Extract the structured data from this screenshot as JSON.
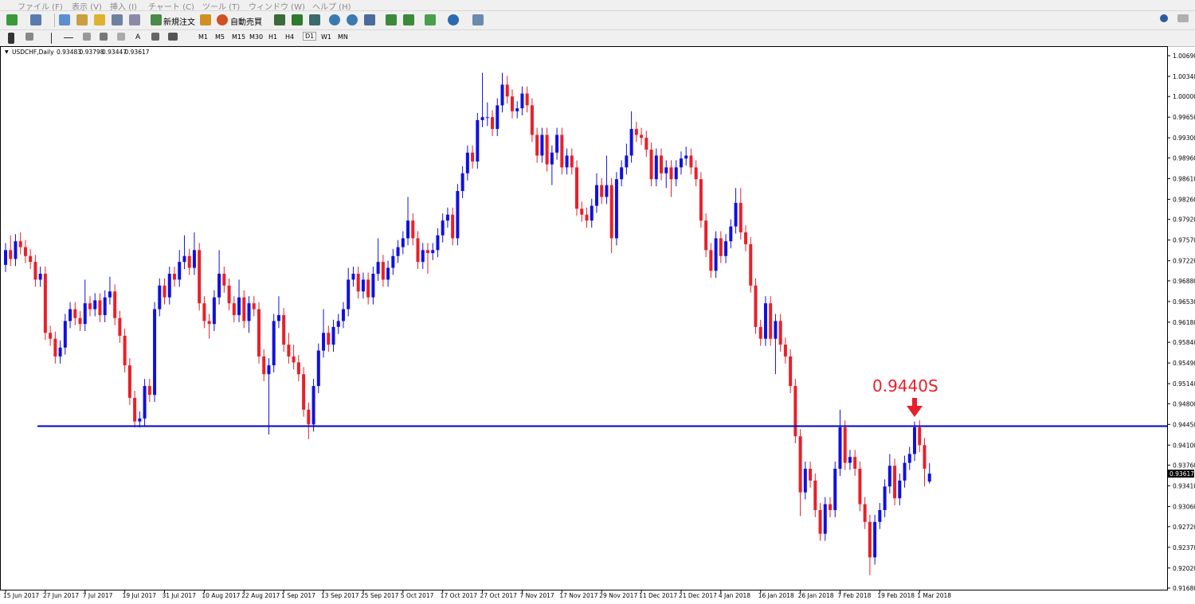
{
  "menu": [
    "ファイル (F)",
    "表示 (V)",
    "挿入 (I)",
    "チャート (C)",
    "ツール (T)",
    "ウィンドウ (W)",
    "ヘルプ (H)"
  ],
  "toolbar": {
    "new_order": "新規注文",
    "auto_trading": "自動売買",
    "text_tool": "A",
    "timeframes": [
      "M1",
      "M5",
      "M15",
      "M30",
      "H1",
      "H4",
      "D1",
      "W1",
      "MN"
    ]
  },
  "chart_data": {
    "type": "candlestick",
    "symbol": "USDCHF,Daily",
    "up_color": "#1010e0",
    "down_color": "#e8202a",
    "ylim": [
      0.9168,
      1.0069
    ],
    "yticks": [
      {
        "value": 1.0069,
        "label": "1.00690"
      },
      {
        "value": 1.0034,
        "label": "1.00340"
      },
      {
        "value": 1.0,
        "label": "1.00000"
      },
      {
        "value": 0.9965,
        "label": "0.99650"
      },
      {
        "value": 0.993,
        "label": "0.99300"
      },
      {
        "value": 0.9896,
        "label": "0.98960"
      },
      {
        "value": 0.9861,
        "label": "0.98610"
      },
      {
        "value": 0.9826,
        "label": "0.98260"
      },
      {
        "value": 0.9792,
        "label": "0.97920"
      },
      {
        "value": 0.9757,
        "label": "0.97570"
      },
      {
        "value": 0.9722,
        "label": "0.97220"
      },
      {
        "value": 0.9688,
        "label": "0.96880"
      },
      {
        "value": 0.9653,
        "label": "0.96530"
      },
      {
        "value": 0.9618,
        "label": "0.96180"
      },
      {
        "value": 0.9584,
        "label": "0.95840"
      },
      {
        "value": 0.9549,
        "label": "0.95490"
      },
      {
        "value": 0.9514,
        "label": "0.95140"
      },
      {
        "value": 0.948,
        "label": "0.94800"
      },
      {
        "value": 0.9445,
        "label": "0.94450"
      },
      {
        "value": 0.941,
        "label": "0.94100"
      },
      {
        "value": 0.9376,
        "label": "0.93760"
      },
      {
        "value": 0.9341,
        "label": "0.93410"
      },
      {
        "value": 0.9306,
        "label": "0.93060"
      },
      {
        "value": 0.9272,
        "label": "0.92720"
      },
      {
        "value": 0.9237,
        "label": "0.92370"
      },
      {
        "value": 0.9202,
        "label": "0.92020"
      },
      {
        "value": 0.9168,
        "label": "0.91680"
      }
    ],
    "xticks": [
      {
        "value": 0,
        "label": "15 Jun 2017"
      },
      {
        "value": 8,
        "label": "27 Jun 2017"
      },
      {
        "value": 16,
        "label": "7 Jul 2017"
      },
      {
        "value": 24,
        "label": "19 Jul 2017"
      },
      {
        "value": 32,
        "label": "31 Jul 2017"
      },
      {
        "value": 40,
        "label": "10 Aug 2017"
      },
      {
        "value": 48,
        "label": "22 Aug 2017"
      },
      {
        "value": 56,
        "label": "1 Sep 2017"
      },
      {
        "value": 64,
        "label": "13 Sep 2017"
      },
      {
        "value": 72,
        "label": "25 Sep 2017"
      },
      {
        "value": 80,
        "label": "5 Oct 2017"
      },
      {
        "value": 88,
        "label": "17 Oct 2017"
      },
      {
        "value": 96,
        "label": "27 Oct 2017"
      },
      {
        "value": 104,
        "label": "7 Nov 2017"
      },
      {
        "value": 112,
        "label": "17 Nov 2017"
      },
      {
        "value": 120,
        "label": "29 Nov 2017"
      },
      {
        "value": 128,
        "label": "11 Dec 2017"
      },
      {
        "value": 136,
        "label": "21 Dec 2017"
      },
      {
        "value": 144,
        "label": "4 Jan 2018"
      },
      {
        "value": 152,
        "label": "16 Jan 2018"
      },
      {
        "value": 160,
        "label": "26 Jan 2018"
      },
      {
        "value": 168,
        "label": "7 Feb 2018"
      },
      {
        "value": 176,
        "label": "19 Feb 2018"
      },
      {
        "value": 184,
        "label": "1 Mar 2018"
      }
    ],
    "hlines": [
      {
        "value": 0.9442,
        "color": "#0000cc"
      }
    ],
    "annotations": [
      {
        "text": "0.9440S",
        "color": "#e8202a"
      }
    ],
    "ohlc": [
      [
        0.9715,
        0.9752,
        0.9703,
        0.974
      ],
      [
        0.974,
        0.9765,
        0.9713,
        0.9725
      ],
      [
        0.9725,
        0.9767,
        0.9713,
        0.9755
      ],
      [
        0.9755,
        0.977,
        0.9733,
        0.9745
      ],
      [
        0.9745,
        0.9757,
        0.9718,
        0.973
      ],
      [
        0.973,
        0.9742,
        0.9708,
        0.972
      ],
      [
        0.972,
        0.9732,
        0.9678,
        0.969
      ],
      [
        0.969,
        0.9712,
        0.9678,
        0.97
      ],
      [
        0.97,
        0.9712,
        0.9588,
        0.96
      ],
      [
        0.96,
        0.9612,
        0.9578,
        0.959
      ],
      [
        0.959,
        0.9602,
        0.9548,
        0.956
      ],
      [
        0.956,
        0.9587,
        0.9548,
        0.9575
      ],
      [
        0.9575,
        0.9632,
        0.9563,
        0.962
      ],
      [
        0.962,
        0.9652,
        0.9608,
        0.964
      ],
      [
        0.964,
        0.9652,
        0.9613,
        0.9625
      ],
      [
        0.9625,
        0.9637,
        0.9603,
        0.9615
      ],
      [
        0.9615,
        0.969,
        0.9603,
        0.965
      ],
      [
        0.965,
        0.9662,
        0.9628,
        0.964
      ],
      [
        0.964,
        0.9667,
        0.9628,
        0.9655
      ],
      [
        0.9655,
        0.9667,
        0.9618,
        0.963
      ],
      [
        0.963,
        0.9672,
        0.9618,
        0.966
      ],
      [
        0.966,
        0.9695,
        0.9648,
        0.967
      ],
      [
        0.967,
        0.9682,
        0.9613,
        0.9625
      ],
      [
        0.9625,
        0.9637,
        0.9583,
        0.9595
      ],
      [
        0.9595,
        0.9607,
        0.9533,
        0.9545
      ],
      [
        0.9545,
        0.9557,
        0.9478,
        0.949
      ],
      [
        0.949,
        0.9502,
        0.944,
        0.945
      ],
      [
        0.945,
        0.9467,
        0.944,
        0.9455
      ],
      [
        0.9455,
        0.9522,
        0.9443,
        0.951
      ],
      [
        0.951,
        0.9522,
        0.9483,
        0.9495
      ],
      [
        0.9495,
        0.9652,
        0.9483,
        0.964
      ],
      [
        0.964,
        0.9692,
        0.9628,
        0.968
      ],
      [
        0.968,
        0.9692,
        0.9648,
        0.966
      ],
      [
        0.966,
        0.9712,
        0.9648,
        0.97
      ],
      [
        0.97,
        0.9712,
        0.9678,
        0.969
      ],
      [
        0.969,
        0.974,
        0.9678,
        0.972
      ],
      [
        0.972,
        0.9765,
        0.9708,
        0.973
      ],
      [
        0.973,
        0.9742,
        0.9698,
        0.971
      ],
      [
        0.971,
        0.977,
        0.9698,
        0.974
      ],
      [
        0.974,
        0.9752,
        0.9638,
        0.965
      ],
      [
        0.965,
        0.9662,
        0.9608,
        0.962
      ],
      [
        0.962,
        0.9632,
        0.959,
        0.9615
      ],
      [
        0.9615,
        0.9672,
        0.9603,
        0.966
      ],
      [
        0.966,
        0.974,
        0.9648,
        0.97
      ],
      [
        0.97,
        0.9712,
        0.9668,
        0.968
      ],
      [
        0.968,
        0.9692,
        0.9638,
        0.965
      ],
      [
        0.965,
        0.9662,
        0.9618,
        0.963
      ],
      [
        0.963,
        0.969,
        0.9618,
        0.966
      ],
      [
        0.966,
        0.9672,
        0.9608,
        0.962
      ],
      [
        0.962,
        0.9662,
        0.96,
        0.965
      ],
      [
        0.965,
        0.9662,
        0.9628,
        0.964
      ],
      [
        0.964,
        0.9652,
        0.9548,
        0.956
      ],
      [
        0.956,
        0.9572,
        0.9518,
        0.953
      ],
      [
        0.953,
        0.9557,
        0.9428,
        0.9545
      ],
      [
        0.9545,
        0.9632,
        0.9533,
        0.962
      ],
      [
        0.962,
        0.9662,
        0.9608,
        0.963
      ],
      [
        0.963,
        0.9642,
        0.9568,
        0.958
      ],
      [
        0.958,
        0.96,
        0.9548,
        0.956
      ],
      [
        0.956,
        0.958,
        0.9538,
        0.955
      ],
      [
        0.955,
        0.9562,
        0.9518,
        0.953
      ],
      [
        0.953,
        0.9542,
        0.9458,
        0.947
      ],
      [
        0.947,
        0.9482,
        0.942,
        0.9445
      ],
      [
        0.9445,
        0.9522,
        0.9433,
        0.951
      ],
      [
        0.951,
        0.9582,
        0.9498,
        0.957
      ],
      [
        0.957,
        0.964,
        0.9558,
        0.96
      ],
      [
        0.96,
        0.9612,
        0.9568,
        0.958
      ],
      [
        0.958,
        0.9622,
        0.9568,
        0.961
      ],
      [
        0.961,
        0.9632,
        0.9598,
        0.962
      ],
      [
        0.962,
        0.9652,
        0.9608,
        0.964
      ],
      [
        0.964,
        0.971,
        0.9628,
        0.969
      ],
      [
        0.969,
        0.9712,
        0.9678,
        0.97
      ],
      [
        0.97,
        0.9712,
        0.9658,
        0.967
      ],
      [
        0.967,
        0.9702,
        0.9658,
        0.969
      ],
      [
        0.969,
        0.9702,
        0.9648,
        0.966
      ],
      [
        0.966,
        0.9712,
        0.9648,
        0.97
      ],
      [
        0.97,
        0.976,
        0.9688,
        0.972
      ],
      [
        0.972,
        0.9732,
        0.9678,
        0.969
      ],
      [
        0.969,
        0.9722,
        0.9678,
        0.971
      ],
      [
        0.971,
        0.9742,
        0.9698,
        0.973
      ],
      [
        0.973,
        0.9757,
        0.9718,
        0.9745
      ],
      [
        0.9745,
        0.9772,
        0.9733,
        0.976
      ],
      [
        0.976,
        0.983,
        0.9748,
        0.979
      ],
      [
        0.979,
        0.9802,
        0.9748,
        0.976
      ],
      [
        0.976,
        0.9772,
        0.9708,
        0.972
      ],
      [
        0.972,
        0.9752,
        0.9708,
        0.974
      ],
      [
        0.974,
        0.9752,
        0.97,
        0.9735
      ],
      [
        0.9735,
        0.9752,
        0.9723,
        0.974
      ],
      [
        0.974,
        0.9777,
        0.9728,
        0.9765
      ],
      [
        0.9765,
        0.9802,
        0.9753,
        0.979
      ],
      [
        0.979,
        0.9812,
        0.9778,
        0.98
      ],
      [
        0.98,
        0.9812,
        0.9748,
        0.976
      ],
      [
        0.976,
        0.9852,
        0.9748,
        0.984
      ],
      [
        0.984,
        0.9882,
        0.9828,
        0.987
      ],
      [
        0.987,
        0.9917,
        0.9858,
        0.9905
      ],
      [
        0.9905,
        0.9917,
        0.9878,
        0.989
      ],
      [
        0.989,
        0.9972,
        0.9878,
        0.996
      ],
      [
        0.996,
        1.004,
        0.9948,
        0.9965
      ],
      [
        0.9965,
        0.999,
        0.995,
        0.9965
      ],
      [
        0.9965,
        0.9977,
        0.9933,
        0.9945
      ],
      [
        0.9945,
        0.9997,
        0.9933,
        0.9985
      ],
      [
        0.9985,
        1.004,
        0.9973,
        1.002
      ],
      [
        1.002,
        1.0035,
        0.9988,
        1.0
      ],
      [
        1.0,
        1.0012,
        0.9963,
        0.9975
      ],
      [
        0.9975,
        0.9992,
        0.9963,
        0.998
      ],
      [
        0.998,
        1.0017,
        0.9968,
        1.0005
      ],
      [
        1.0005,
        1.0017,
        0.9973,
        0.9985
      ],
      [
        0.9985,
        0.9997,
        0.9923,
        0.9935
      ],
      [
        0.9935,
        0.9947,
        0.9888,
        0.99
      ],
      [
        0.99,
        0.9947,
        0.9888,
        0.9935
      ],
      [
        0.9935,
        0.9947,
        0.9873,
        0.9885
      ],
      [
        0.9885,
        0.9917,
        0.985,
        0.9905
      ],
      [
        0.9905,
        0.9947,
        0.9893,
        0.9935
      ],
      [
        0.9935,
        0.9947,
        0.9868,
        0.988
      ],
      [
        0.988,
        0.9912,
        0.9868,
        0.99
      ],
      [
        0.99,
        0.9912,
        0.9868,
        0.988
      ],
      [
        0.988,
        0.9892,
        0.9798,
        0.981
      ],
      [
        0.981,
        0.9822,
        0.9788,
        0.98
      ],
      [
        0.98,
        0.9812,
        0.9778,
        0.979
      ],
      [
        0.979,
        0.9827,
        0.9778,
        0.9815
      ],
      [
        0.9815,
        0.987,
        0.9803,
        0.985
      ],
      [
        0.985,
        0.9862,
        0.9818,
        0.983
      ],
      [
        0.983,
        0.99,
        0.9818,
        0.985
      ],
      [
        0.985,
        0.9862,
        0.9735,
        0.976
      ],
      [
        0.976,
        0.9872,
        0.9748,
        0.986
      ],
      [
        0.986,
        0.9892,
        0.9848,
        0.988
      ],
      [
        0.988,
        0.992,
        0.9868,
        0.99
      ],
      [
        0.99,
        0.9975,
        0.9888,
        0.9945
      ],
      [
        0.9945,
        0.9957,
        0.9923,
        0.9935
      ],
      [
        0.9935,
        0.9947,
        0.9918,
        0.993
      ],
      [
        0.993,
        0.9942,
        0.9898,
        0.991
      ],
      [
        0.991,
        0.9922,
        0.9848,
        0.986
      ],
      [
        0.986,
        0.9912,
        0.9848,
        0.99
      ],
      [
        0.99,
        0.9912,
        0.9858,
        0.987
      ],
      [
        0.987,
        0.9892,
        0.9845,
        0.988
      ],
      [
        0.988,
        0.9892,
        0.983,
        0.986
      ],
      [
        0.986,
        0.9892,
        0.9848,
        0.988
      ],
      [
        0.988,
        0.9907,
        0.9868,
        0.9895
      ],
      [
        0.9895,
        0.9915,
        0.9883,
        0.99
      ],
      [
        0.99,
        0.9912,
        0.9868,
        0.988
      ],
      [
        0.988,
        0.9892,
        0.9848,
        0.986
      ],
      [
        0.986,
        0.9872,
        0.9778,
        0.979
      ],
      [
        0.979,
        0.9802,
        0.9728,
        0.974
      ],
      [
        0.974,
        0.9752,
        0.9693,
        0.9705
      ],
      [
        0.9705,
        0.9772,
        0.9693,
        0.976
      ],
      [
        0.976,
        0.9772,
        0.9718,
        0.973
      ],
      [
        0.973,
        0.9767,
        0.9718,
        0.9755
      ],
      [
        0.9755,
        0.9792,
        0.9743,
        0.978
      ],
      [
        0.978,
        0.9845,
        0.9768,
        0.982
      ],
      [
        0.982,
        0.9845,
        0.9758,
        0.977
      ],
      [
        0.977,
        0.9782,
        0.9738,
        0.975
      ],
      [
        0.975,
        0.9762,
        0.9668,
        0.968
      ],
      [
        0.968,
        0.9692,
        0.9598,
        0.961
      ],
      [
        0.961,
        0.9622,
        0.9578,
        0.959
      ],
      [
        0.959,
        0.9662,
        0.9578,
        0.965
      ],
      [
        0.965,
        0.9662,
        0.9578,
        0.959
      ],
      [
        0.959,
        0.9632,
        0.953,
        0.962
      ],
      [
        0.962,
        0.9632,
        0.9568,
        0.958
      ],
      [
        0.958,
        0.9592,
        0.9548,
        0.956
      ],
      [
        0.956,
        0.9572,
        0.9498,
        0.951
      ],
      [
        0.951,
        0.9522,
        0.9413,
        0.9425
      ],
      [
        0.9425,
        0.9437,
        0.929,
        0.933
      ],
      [
        0.933,
        0.9382,
        0.9318,
        0.937
      ],
      [
        0.937,
        0.9382,
        0.9338,
        0.935
      ],
      [
        0.935,
        0.9362,
        0.9288,
        0.93
      ],
      [
        0.93,
        0.9312,
        0.9248,
        0.926
      ],
      [
        0.926,
        0.9322,
        0.9248,
        0.931
      ],
      [
        0.931,
        0.9322,
        0.9288,
        0.93
      ],
      [
        0.93,
        0.9382,
        0.9288,
        0.937
      ],
      [
        0.937,
        0.947,
        0.9358,
        0.944
      ],
      [
        0.944,
        0.9452,
        0.9368,
        0.938
      ],
      [
        0.938,
        0.9402,
        0.9368,
        0.939
      ],
      [
        0.939,
        0.9402,
        0.9358,
        0.937
      ],
      [
        0.937,
        0.9382,
        0.9298,
        0.931
      ],
      [
        0.931,
        0.9322,
        0.9268,
        0.928
      ],
      [
        0.928,
        0.9292,
        0.919,
        0.922
      ],
      [
        0.922,
        0.9292,
        0.9208,
        0.928
      ],
      [
        0.928,
        0.9312,
        0.9268,
        0.93
      ],
      [
        0.93,
        0.9352,
        0.9288,
        0.934
      ],
      [
        0.934,
        0.9395,
        0.9328,
        0.9375
      ],
      [
        0.9375,
        0.9387,
        0.9308,
        0.932
      ],
      [
        0.932,
        0.9362,
        0.9308,
        0.935
      ],
      [
        0.935,
        0.9392,
        0.9338,
        0.938
      ],
      [
        0.938,
        0.9407,
        0.9368,
        0.9395
      ],
      [
        0.9395,
        0.945,
        0.9383,
        0.944
      ],
      [
        0.944,
        0.9452,
        0.9398,
        0.941
      ],
      [
        0.941,
        0.9422,
        0.934,
        0.937
      ],
      [
        0.93483,
        0.93798,
        0.93447,
        0.93617
      ]
    ]
  }
}
